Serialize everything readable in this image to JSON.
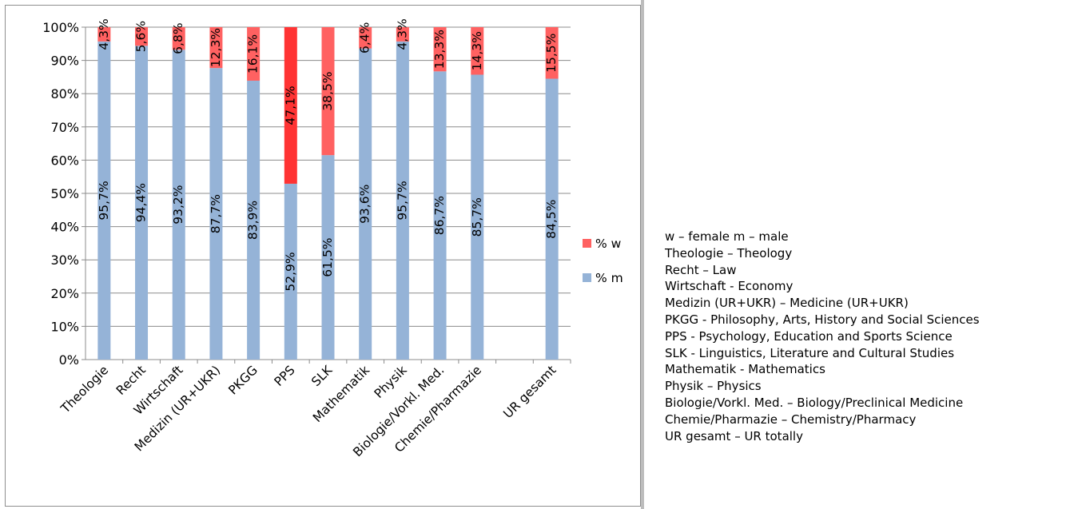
{
  "chart_data": {
    "type": "bar",
    "stacked": true,
    "categories": [
      "Theologie",
      "Recht",
      "Wirtschaft",
      "Medizin (UR+UKR)",
      "PKGG",
      "PPS",
      "SLK",
      "Mathematik",
      "Physik",
      "Biologie/Vorkl. Med.",
      "Chemie/Pharmazie",
      "",
      "UR gesamt"
    ],
    "series": [
      {
        "name": "% m",
        "color": "#95b3d7",
        "values": [
          95.7,
          94.4,
          93.2,
          87.7,
          83.9,
          52.9,
          61.5,
          93.6,
          95.7,
          86.7,
          85.7,
          null,
          84.5
        ],
        "labels": [
          "95,7%",
          "94,4%",
          "93,2%",
          "87,7%",
          "83,9%",
          "52,9%",
          "61,5%",
          "93,6%",
          "95,7%",
          "86,7%",
          "85,7%",
          "",
          "84,5%"
        ]
      },
      {
        "name": "% w",
        "color": "#ff6161",
        "values": [
          4.3,
          5.6,
          6.8,
          12.3,
          16.1,
          47.1,
          38.5,
          6.4,
          4.3,
          13.3,
          14.3,
          null,
          15.5
        ],
        "labels": [
          "4,3%",
          "5,6%",
          "6,8%",
          "12,3%",
          "16,1%",
          "47,1%",
          "38,5%",
          "6,4%",
          "4,3%",
          "13,3%",
          "14,3%",
          "",
          "15,5%"
        ]
      }
    ],
    "ylim": [
      0,
      100
    ],
    "yticks": [
      "0%",
      "10%",
      "20%",
      "30%",
      "40%",
      "50%",
      "60%",
      "70%",
      "80%",
      "90%",
      "100%"
    ],
    "grid": true,
    "legend": "right",
    "legend_order": [
      "% w",
      "% m"
    ],
    "highlight_color": "#ff3333",
    "highlight_categories": [
      "PPS"
    ]
  },
  "glossary": [
    "w – female   m – male",
    "Theologie – Theology",
    "Recht – Law",
    "Wirtschaft - Economy",
    "Medizin (UR+UKR) – Medicine (UR+UKR)",
    "PKGG - Philosophy, Arts, History and Social Sciences",
    "PPS - Psychology, Education and Sports Science",
    "SLK - Linguistics, Literature and Cultural Studies",
    "Mathematik - Mathematics",
    "Physik – Physics",
    "Biologie/Vorkl. Med. – Biology/Preclinical Medicine",
    "Chemie/Pharmazie – Chemistry/Pharmacy",
    "UR gesamt – UR totally"
  ]
}
